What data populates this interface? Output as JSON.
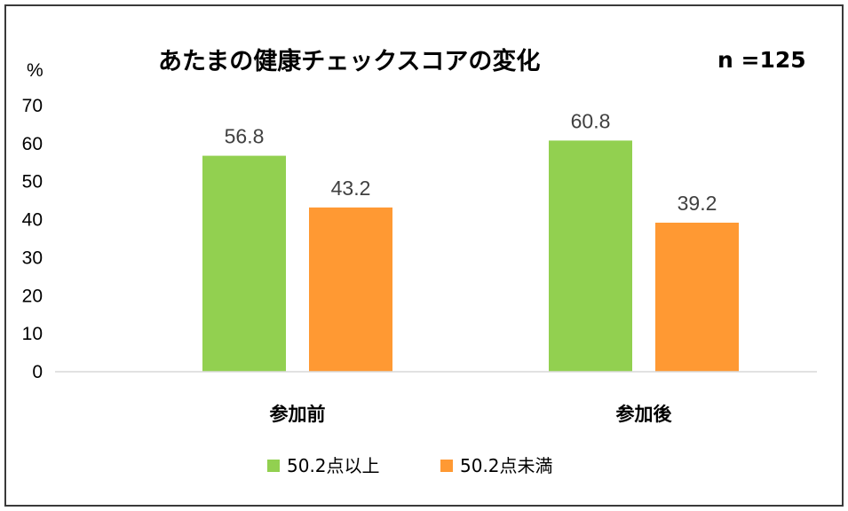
{
  "chart_data": {
    "type": "bar",
    "title": "あたまの健康チェックスコアの変化",
    "sample_note": "n =125",
    "ylabel": "%",
    "ylim": [
      0,
      70
    ],
    "yticks": [
      "0",
      "10",
      "20",
      "30",
      "40",
      "50",
      "60",
      "70"
    ],
    "categories": [
      "参加前",
      "参加後"
    ],
    "series": [
      {
        "name": "50.2点以上",
        "values": [
          56.8,
          60.8
        ],
        "labels": [
          "56.8",
          "60.8"
        ],
        "color": "#92d050"
      },
      {
        "name": "50.2点未満",
        "values": [
          43.2,
          39.2
        ],
        "labels": [
          "43.2",
          "39.2"
        ],
        "color": "#ff9933"
      }
    ],
    "legend_position": "bottom",
    "grid": false
  }
}
